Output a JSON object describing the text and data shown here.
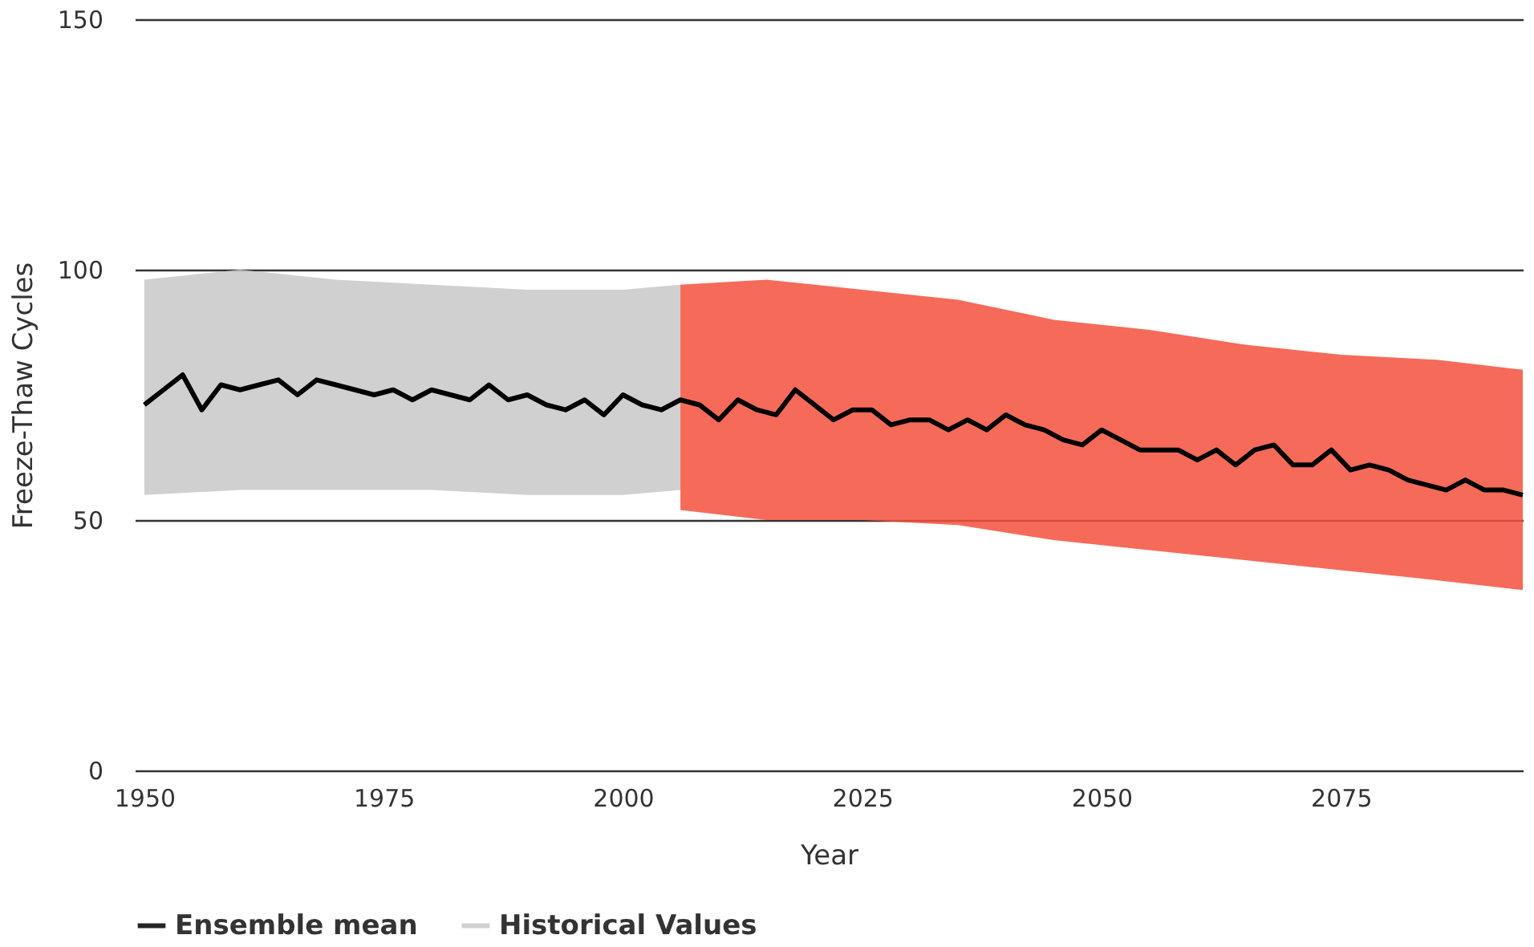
{
  "chart_data": {
    "type": "line",
    "xlabel": "Year",
    "ylabel": "Freeze-Thaw Cycles",
    "xlim": [
      1949,
      2094
    ],
    "xticks": [
      1950,
      1975,
      2000,
      2025,
      2050,
      2075
    ],
    "ylim": [
      0,
      150
    ],
    "yticks": [
      0,
      50,
      100,
      150
    ],
    "grid": "y",
    "legend": "bottom",
    "series": [
      {
        "name": "Ensemble mean",
        "color": "#000000",
        "x": [
          1950,
          1952,
          1954,
          1956,
          1958,
          1960,
          1962,
          1964,
          1966,
          1968,
          1970,
          1972,
          1974,
          1976,
          1978,
          1980,
          1982,
          1984,
          1986,
          1988,
          1990,
          1992,
          1994,
          1996,
          1998,
          2000,
          2002,
          2004,
          2006,
          2008,
          2010,
          2012,
          2014,
          2016,
          2018,
          2020,
          2022,
          2024,
          2026,
          2028,
          2030,
          2032,
          2034,
          2036,
          2038,
          2040,
          2042,
          2044,
          2046,
          2048,
          2050,
          2052,
          2054,
          2056,
          2058,
          2060,
          2062,
          2064,
          2066,
          2068,
          2070,
          2072,
          2074,
          2076,
          2078,
          2080,
          2082,
          2084,
          2086,
          2088,
          2090,
          2092,
          2094
        ],
        "values": [
          73,
          76,
          79,
          72,
          77,
          76,
          77,
          78,
          75,
          78,
          77,
          76,
          75,
          76,
          74,
          76,
          75,
          74,
          77,
          74,
          75,
          73,
          72,
          74,
          71,
          75,
          73,
          72,
          74,
          73,
          70,
          74,
          72,
          71,
          76,
          73,
          70,
          72,
          72,
          69,
          70,
          70,
          68,
          70,
          68,
          71,
          69,
          68,
          66,
          65,
          68,
          66,
          64,
          64,
          64,
          62,
          64,
          61,
          64,
          65,
          61,
          61,
          64,
          60,
          61,
          60,
          58,
          57,
          56,
          58,
          56,
          56,
          55
        ]
      },
      {
        "name": "Historical Values",
        "color": "#c8c8c8",
        "x": [
          1950,
          1960,
          1970,
          1980,
          1990,
          2000,
          2006
        ],
        "values": [
          null,
          null,
          null,
          null,
          null,
          null,
          null
        ],
        "lower": [
          55,
          56,
          56,
          56,
          55,
          55,
          56
        ],
        "upper": [
          98,
          100,
          98,
          97,
          96,
          96,
          97
        ]
      },
      {
        "color": "#f4503c",
        "x": [
          2006,
          2015,
          2025,
          2035,
          2045,
          2055,
          2065,
          2075,
          2085,
          2094
        ],
        "values": [
          null,
          null,
          null,
          null,
          null,
          null,
          null,
          null,
          null,
          null
        ],
        "lower": [
          52,
          50,
          50,
          49,
          46,
          44,
          42,
          40,
          38,
          36
        ],
        "upper": [
          97,
          98,
          96,
          94,
          90,
          88,
          85,
          83,
          82,
          80
        ]
      }
    ]
  }
}
